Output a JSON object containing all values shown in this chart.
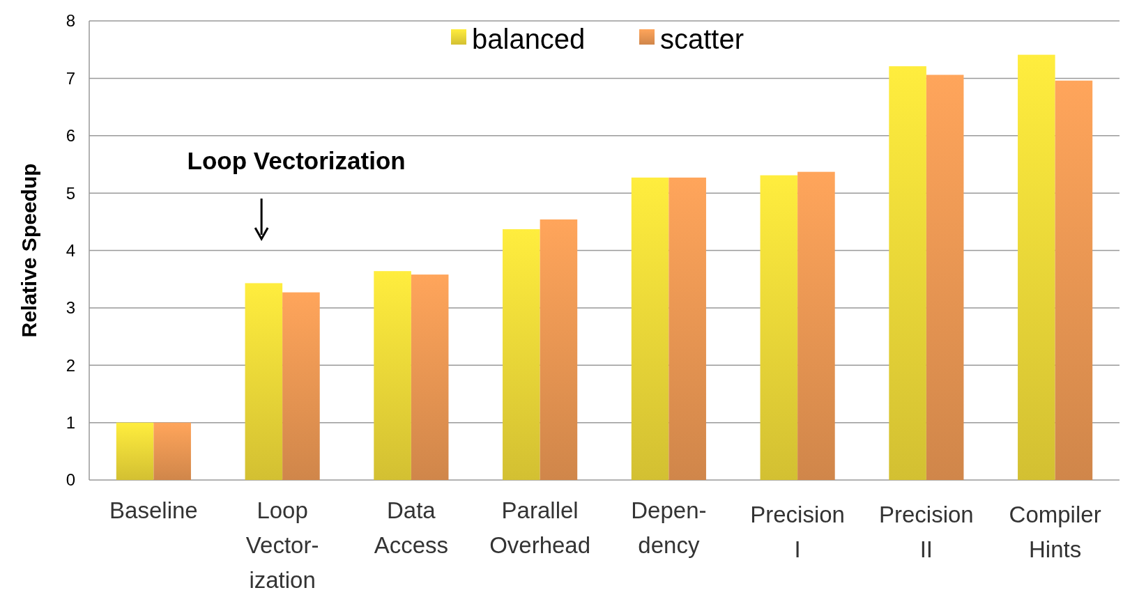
{
  "chart_data": {
    "type": "bar",
    "ylabel": "Relative Speedup",
    "categories": [
      "Baseline",
      "Loop\nVector-\nization",
      "Data\nAccess",
      "Parallel\nOverhead",
      "Depen-\ndency",
      "Precision\nI",
      "Precision\nII",
      "Compiler\nHints"
    ],
    "series": [
      {
        "name": "balanced",
        "color": "#f3dd3a",
        "values": [
          1,
          3.43,
          3.64,
          4.37,
          5.27,
          5.31,
          7.21,
          7.41
        ]
      },
      {
        "name": "scatter",
        "color": "#f09a55",
        "values": [
          1,
          3.27,
          3.58,
          4.54,
          5.27,
          5.37,
          7.06,
          6.96
        ]
      }
    ],
    "ylim": [
      0,
      8
    ],
    "yticks": [
      0,
      1,
      2,
      3,
      4,
      5,
      6,
      7,
      8
    ],
    "grid": "y",
    "legend": "top",
    "annotations": [
      "Loop Vectorization"
    ]
  }
}
